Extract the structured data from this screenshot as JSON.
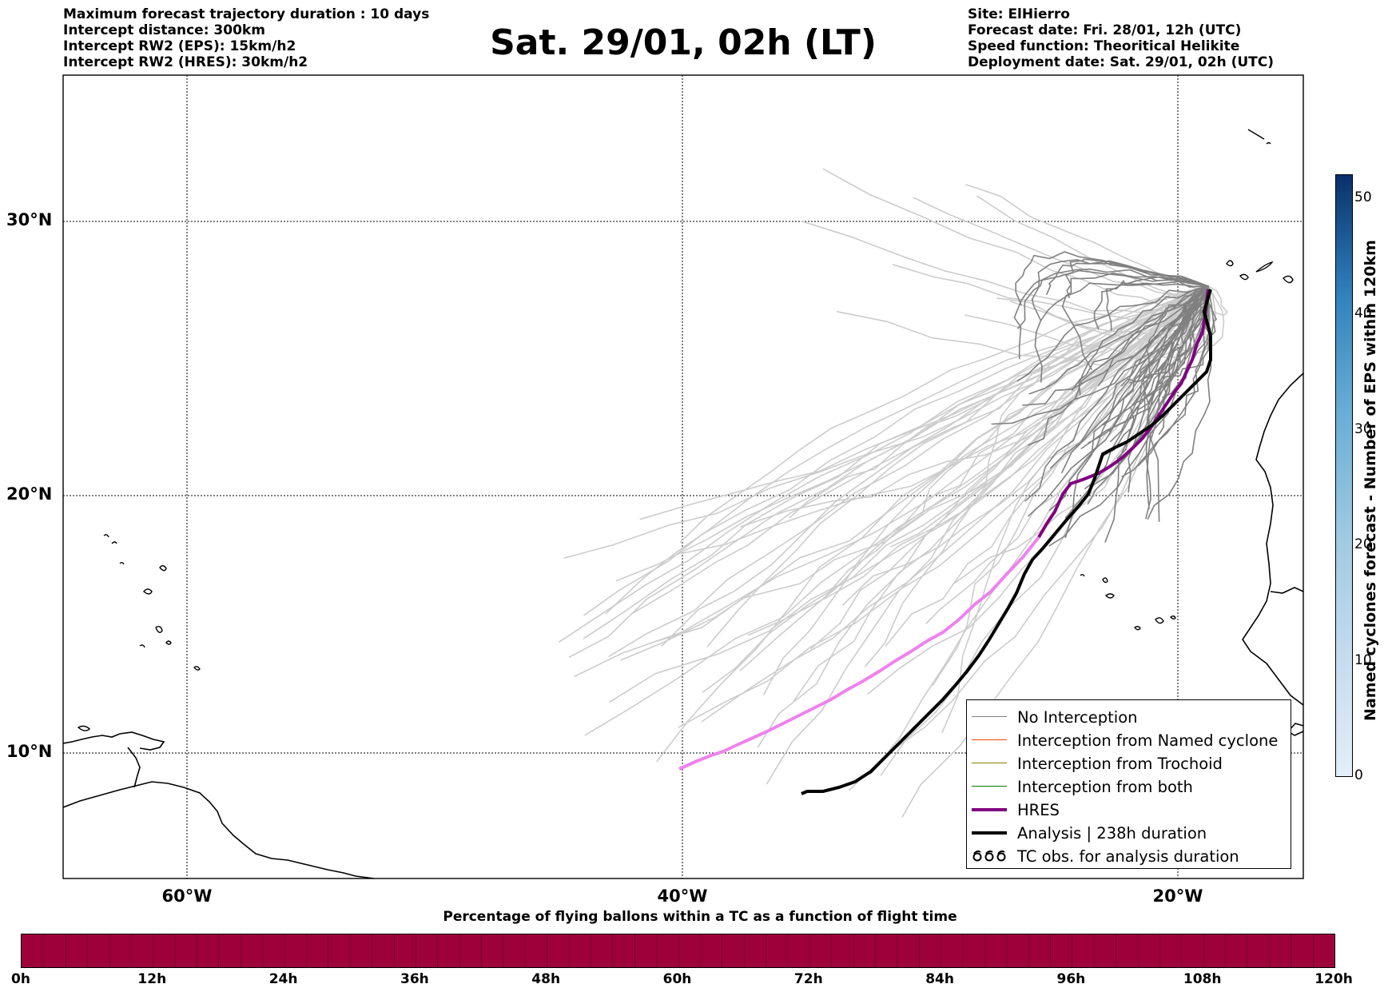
{
  "header": {
    "left_lines": [
      "Maximum forecast trajectory duration : 10 days",
      "Intercept distance: 300km",
      "Intercept RW2 (EPS):  15km/h2",
      "Intercept RW2 (HRES): 30km/h2"
    ],
    "title": "Sat. 29/01, 02h (LT)",
    "right_lines": [
      "Site: ElHierro",
      "Forecast date: Fri. 28/01, 12h (UTC)",
      "Speed function: Theoritical Helikite",
      "Deployment date: Sat. 29/01, 02h (UTC)"
    ]
  },
  "map": {
    "lat_labels": [
      "30°N",
      "20°N",
      "10°N"
    ],
    "lon_labels": [
      "60°W",
      "40°W",
      "20°W"
    ],
    "colors": {
      "no_interception": "#808080",
      "named_cyclone": "#ff4500",
      "trochoid": "#808000",
      "both": "#008000",
      "hres": "#800080",
      "hres_light": "#ee82ee",
      "analysis": "#000000",
      "eps_faint": "#cccccc"
    }
  },
  "legend": {
    "items": [
      {
        "label": "No Interception",
        "icon": "gray-line"
      },
      {
        "label": "Interception from Named cyclone",
        "icon": "orange-line"
      },
      {
        "label": "Interception from Trochoid",
        "icon": "olive-line"
      },
      {
        "label": "Interception from both",
        "icon": "green-line"
      },
      {
        "label": "HRES",
        "icon": "purple-thick-line"
      },
      {
        "label": "Analysis | 238h duration",
        "icon": "black-thick-line"
      },
      {
        "label": "TC obs. for analysis duration",
        "icon": "cyclone-symbols",
        "symbols": "ઠઠઠ"
      }
    ]
  },
  "colorbar_right": {
    "title": "Named cyclones forecast - Number of EPS within 120km",
    "ticks": [
      "0",
      "10",
      "20",
      "30",
      "40",
      "50"
    ],
    "colors": [
      "#e3eef9",
      "#c6dbef",
      "#9ecae1",
      "#6baed6",
      "#3182bd",
      "#08306b"
    ]
  },
  "colorbar_bottom": {
    "title": "Percentage of flying ballons within a TC as a function of flight time",
    "ticks": [
      "0h",
      "12h",
      "24h",
      "36h",
      "48h",
      "60h",
      "72h",
      "84h",
      "96h",
      "108h",
      "120h"
    ],
    "color": "#9e003a"
  }
}
